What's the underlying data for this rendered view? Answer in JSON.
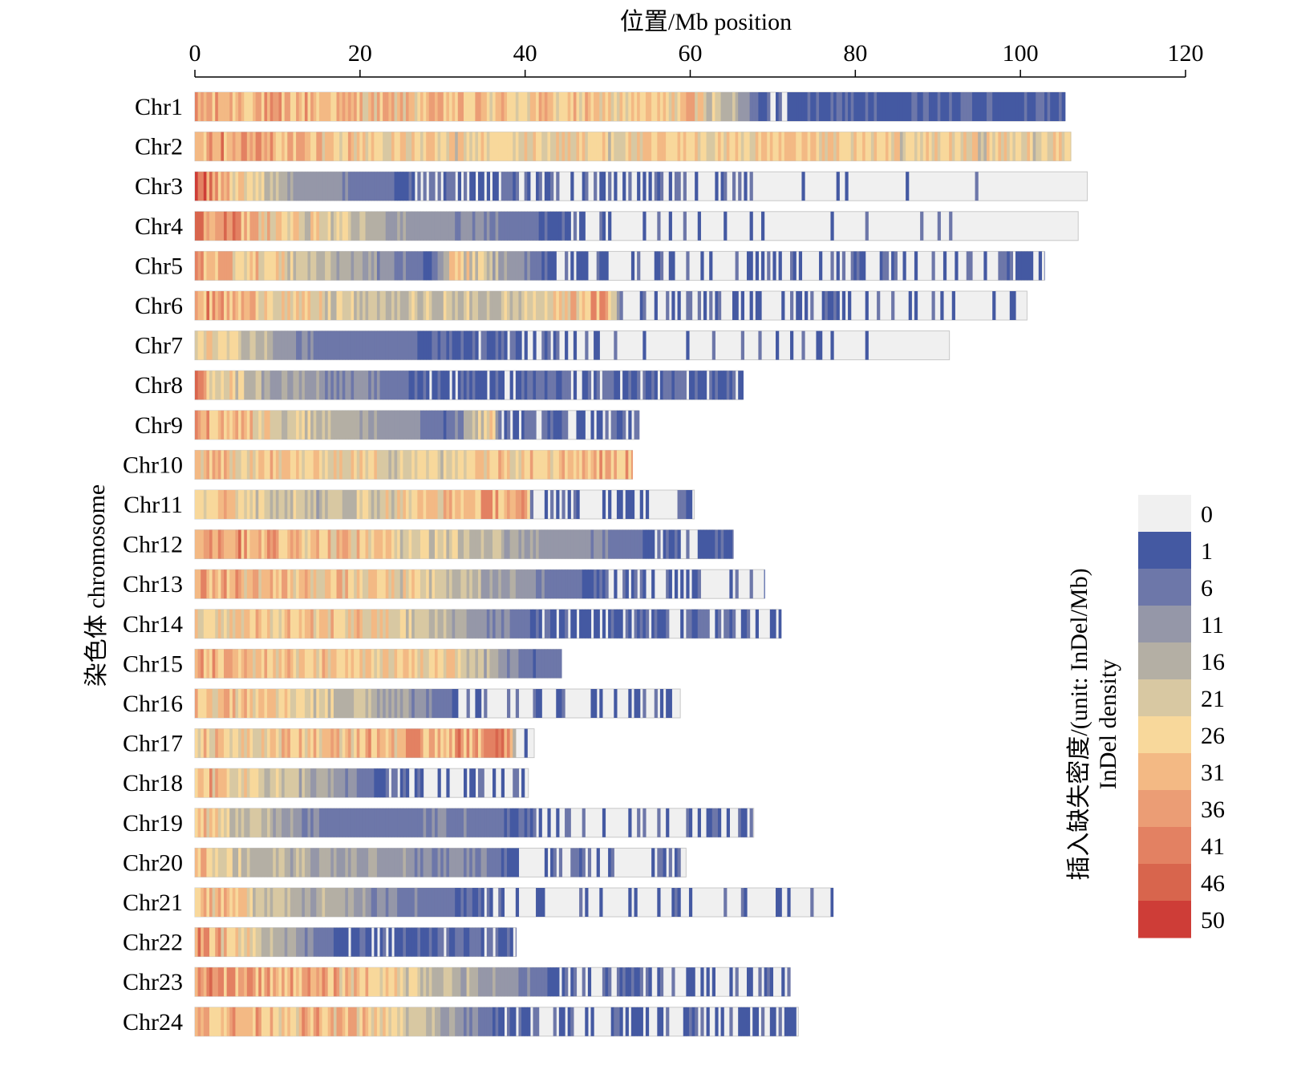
{
  "chart_data": {
    "type": "heatmap",
    "xlabel": "位置/Mb position",
    "ylabel": "染色体 chromosome",
    "xlim": [
      0,
      120
    ],
    "xticks": [
      0,
      20,
      40,
      60,
      80,
      100,
      120
    ],
    "colorbar": {
      "title_cn": "插入缺失密度/(unit: InDel/Mb)",
      "title_en": "InDel density",
      "labels": [
        "0",
        "1",
        "6",
        "11",
        "16",
        "21",
        "26",
        "31",
        "36",
        "41",
        "46",
        "50"
      ],
      "colors": [
        "#f0f0f0",
        "#4459a2",
        "#6d77a9",
        "#9597a8",
        "#b4afa4",
        "#d8c8a2",
        "#f8d89b",
        "#f3b984",
        "#eb9d75",
        "#e38162",
        "#d8654d",
        "#ce3d37"
      ]
    },
    "chromosomes": [
      {
        "name": "Chr1",
        "length": 105.4,
        "profile": [
          [
            0,
            33
          ],
          [
            58,
            26
          ],
          [
            60,
            31
          ],
          [
            70,
            0
          ],
          [
            72,
            4
          ]
        ]
      },
      {
        "name": "Chr2",
        "length": 106.1,
        "profile": [
          [
            0,
            40
          ],
          [
            13,
            30
          ],
          [
            30,
            24
          ],
          [
            60,
            26
          ],
          [
            106,
            24
          ]
        ]
      },
      {
        "name": "Chr3",
        "length": 108.1,
        "profile": [
          [
            0,
            44
          ],
          [
            6,
            24
          ],
          [
            11,
            15
          ],
          [
            20,
            7
          ],
          [
            28,
            3
          ],
          [
            50,
            1.5
          ],
          [
            70,
            0.5
          ],
          [
            105,
            0
          ]
        ]
      },
      {
        "name": "Chr4",
        "length": 107.0,
        "profile": [
          [
            0,
            44
          ],
          [
            10,
            27
          ],
          [
            22,
            16
          ],
          [
            30,
            10
          ],
          [
            52,
            0.6
          ],
          [
            105,
            0
          ]
        ]
      },
      {
        "name": "Chr5",
        "length": 102.9,
        "profile": [
          [
            0,
            36
          ],
          [
            29,
            3
          ],
          [
            31,
            28
          ],
          [
            43,
            2
          ],
          [
            60,
            1.3
          ],
          [
            100,
            2
          ]
        ]
      },
      {
        "name": "Chr6",
        "length": 100.8,
        "profile": [
          [
            0,
            36
          ],
          [
            21,
            18
          ],
          [
            40,
            20
          ],
          [
            50,
            35
          ],
          [
            52,
            1.2
          ],
          [
            101,
            1.2
          ]
        ]
      },
      {
        "name": "Chr7",
        "length": 91.4,
        "profile": [
          [
            0,
            30
          ],
          [
            10,
            14
          ],
          [
            15,
            7
          ],
          [
            45,
            2
          ],
          [
            56,
            0.7
          ],
          [
            90,
            0
          ]
        ]
      },
      {
        "name": "Chr8",
        "length": 66.4,
        "profile": [
          [
            0,
            36
          ],
          [
            8,
            16
          ],
          [
            29,
            3
          ],
          [
            40,
            3.5
          ],
          [
            66,
            3
          ]
        ]
      },
      {
        "name": "Chr9",
        "length": 53.8,
        "profile": [
          [
            0,
            34
          ],
          [
            31,
            4
          ],
          [
            36,
            28
          ],
          [
            37,
            3
          ],
          [
            54,
            3
          ]
        ]
      },
      {
        "name": "Chr10",
        "length": 53.0,
        "profile": [
          [
            0,
            30
          ],
          [
            30,
            22
          ],
          [
            35,
            30
          ],
          [
            53,
            32
          ]
        ]
      },
      {
        "name": "Chr11",
        "length": 60.5,
        "profile": [
          [
            0,
            30
          ],
          [
            16,
            17
          ],
          [
            25,
            26
          ],
          [
            40,
            35
          ],
          [
            41,
            1.5
          ],
          [
            61,
            1.5
          ]
        ]
      },
      {
        "name": "Chr12",
        "length": 65.2,
        "profile": [
          [
            0,
            38
          ],
          [
            24,
            26
          ],
          [
            57,
            2.5
          ],
          [
            65,
            3
          ]
        ]
      },
      {
        "name": "Chr13",
        "length": 69.0,
        "profile": [
          [
            0,
            34
          ],
          [
            25,
            24
          ],
          [
            50,
            2
          ],
          [
            69,
            0.8
          ]
        ]
      },
      {
        "name": "Chr14",
        "length": 71.0,
        "profile": [
          [
            0,
            26
          ],
          [
            20,
            28
          ],
          [
            42,
            3
          ],
          [
            71,
            2.5
          ]
        ]
      },
      {
        "name": "Chr15",
        "length": 44.4,
        "profile": [
          [
            0,
            32
          ],
          [
            20,
            26
          ],
          [
            30,
            26
          ],
          [
            41,
            4
          ],
          [
            44,
            6
          ]
        ]
      },
      {
        "name": "Chr16",
        "length": 58.8,
        "profile": [
          [
            0,
            32
          ],
          [
            20,
            18
          ],
          [
            34,
            1
          ],
          [
            59,
            1.5
          ]
        ]
      },
      {
        "name": "Chr17",
        "length": 41.1,
        "profile": [
          [
            0,
            27
          ],
          [
            20,
            30
          ],
          [
            38,
            38
          ],
          [
            39,
            1.5
          ]
        ]
      },
      {
        "name": "Chr18",
        "length": 40.4,
        "profile": [
          [
            0,
            34
          ],
          [
            24,
            2
          ],
          [
            40,
            1.5
          ]
        ]
      },
      {
        "name": "Chr19",
        "length": 67.7,
        "profile": [
          [
            0,
            30
          ],
          [
            10,
            14
          ],
          [
            18,
            5
          ],
          [
            30,
            8
          ],
          [
            46,
            1.2
          ],
          [
            68,
            1.5
          ]
        ]
      },
      {
        "name": "Chr20",
        "length": 59.5,
        "profile": [
          [
            0,
            34
          ],
          [
            5,
            20
          ],
          [
            18,
            13
          ],
          [
            34,
            9
          ],
          [
            40,
            0.8
          ],
          [
            59,
            1.2
          ]
        ]
      },
      {
        "name": "Chr21",
        "length": 77.3,
        "profile": [
          [
            0,
            34
          ],
          [
            10,
            20
          ],
          [
            20,
            11
          ],
          [
            39,
            1
          ],
          [
            77,
            0.5
          ]
        ]
      },
      {
        "name": "Chr22",
        "length": 38.9,
        "profile": [
          [
            0,
            36
          ],
          [
            17,
            3.5
          ],
          [
            39,
            3.5
          ]
        ]
      },
      {
        "name": "Chr23",
        "length": 72.1,
        "profile": [
          [
            0,
            37
          ],
          [
            20,
            30
          ],
          [
            45,
            2
          ],
          [
            72,
            1.5
          ]
        ]
      },
      {
        "name": "Chr24",
        "length": 73.1,
        "profile": [
          [
            0,
            32
          ],
          [
            20,
            30
          ],
          [
            38,
            1.5
          ],
          [
            73,
            2.5
          ]
        ]
      }
    ]
  }
}
